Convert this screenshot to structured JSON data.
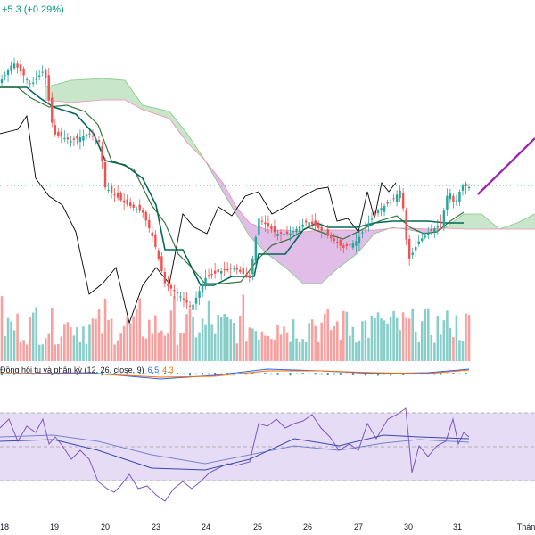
{
  "header": {
    "change_text": "+5.3 (+0.29%)"
  },
  "macd": {
    "label": "Đồng hội tụ và phân kỳ (12, 26, close, 9)",
    "value1": "6.5",
    "value2": "4.3"
  },
  "colors": {
    "up": "#26a69a",
    "down": "#ef5350",
    "cloud_bull": "#c8e6c9",
    "cloud_bear": "#e1bee7",
    "tenkan": "#1b5e20",
    "kijun": "#00695c",
    "lagging": "#000000",
    "rsi": "#7e57c2",
    "rsi_band": "#e6dcf5",
    "macd_line": "#2962ff",
    "signal_line": "#ff6d00",
    "projection": "#9c27b0"
  },
  "chart_data": {
    "type": "candlestick",
    "x_tick_labels": [
      "18",
      "19",
      "20",
      "23",
      "24",
      "25",
      "26",
      "27",
      "30",
      "31",
      "Thán"
    ],
    "panes": [
      "price",
      "volume",
      "macd",
      "rsi"
    ],
    "notes": "Ichimoku cloud, MACD and RSI overlays; price axis not visible"
  }
}
